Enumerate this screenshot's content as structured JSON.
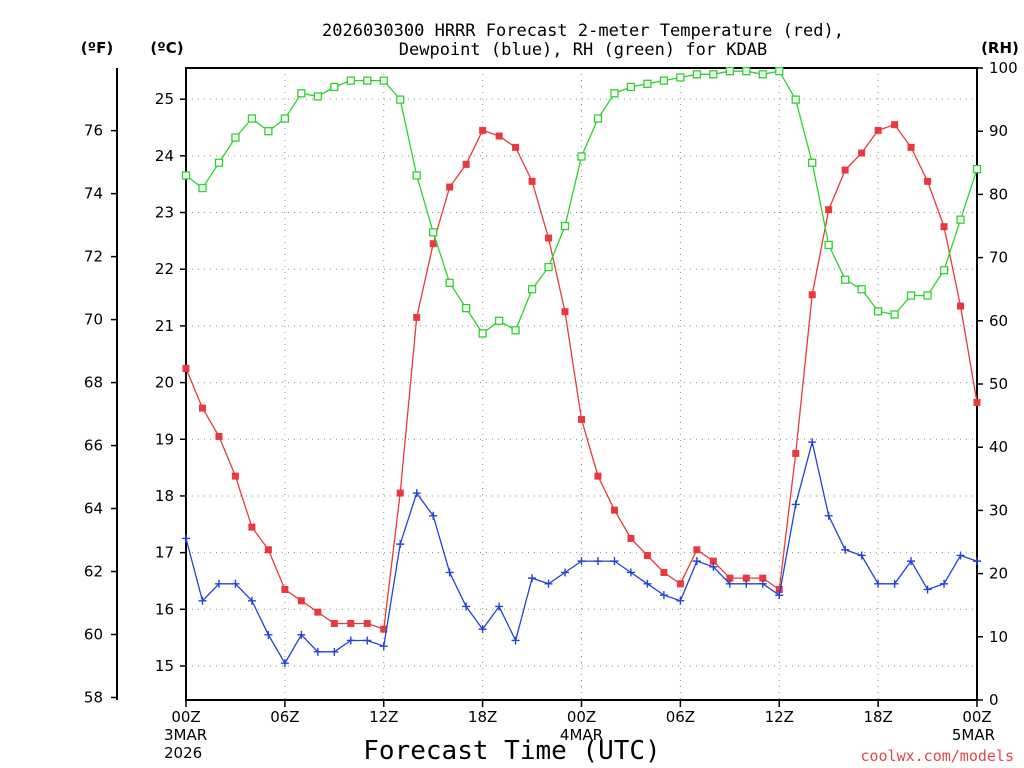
{
  "chart_data": {
    "type": "line",
    "title_lines": [
      "2026030300 HRRR Forecast 2-meter Temperature (red),",
      "Dewpoint (blue), RH (green) for KDAB"
    ],
    "xlabel": "Forecast Time (UTC)",
    "credit": "coolwx.com/models",
    "units": {
      "left_f": "(ºF)",
      "left_c": "(ºC)",
      "right": "(RH)"
    },
    "x_ticks": [
      {
        "hour": 0,
        "label": "00Z",
        "date": "3MAR",
        "year": "2026"
      },
      {
        "hour": 6,
        "label": "06Z"
      },
      {
        "hour": 12,
        "label": "12Z"
      },
      {
        "hour": 18,
        "label": "18Z"
      },
      {
        "hour": 24,
        "label": "00Z",
        "date": "4MAR"
      },
      {
        "hour": 30,
        "label": "06Z"
      },
      {
        "hour": 36,
        "label": "12Z"
      },
      {
        "hour": 42,
        "label": "18Z"
      },
      {
        "hour": 48,
        "label": "00Z",
        "date": "5MAR"
      }
    ],
    "xlim": [
      0,
      48
    ],
    "ylim_c": [
      14.4,
      25.55
    ],
    "ylim_f": [
      57.92,
      77.99
    ],
    "ylim_rh": [
      0,
      100
    ],
    "f_ticks": [
      "58",
      "60",
      "62",
      "64",
      "66",
      "68",
      "70",
      "72",
      "74",
      "76"
    ],
    "c_ticks": [
      "15",
      "16",
      "17",
      "18",
      "19",
      "20",
      "21",
      "22",
      "23",
      "24",
      "25"
    ],
    "rh_ticks": [
      "0",
      "10",
      "20",
      "30",
      "40",
      "50",
      "60",
      "70",
      "80",
      "90",
      "100"
    ],
    "grid": true,
    "series": [
      {
        "name": "Temperature (red)",
        "unit": "C",
        "color": "#e8393c",
        "marker": "filled-square",
        "values": [
          20.25,
          19.55,
          19.05,
          18.35,
          17.45,
          17.05,
          16.35,
          16.15,
          15.95,
          15.75,
          15.75,
          15.75,
          15.65,
          18.05,
          21.15,
          22.45,
          23.45,
          23.85,
          24.45,
          24.35,
          24.15,
          23.55,
          22.55,
          21.25,
          19.35,
          18.35,
          17.75,
          17.25,
          16.95,
          16.65,
          16.45,
          17.05,
          16.85,
          16.55,
          16.55,
          16.55,
          16.35,
          18.75,
          21.55,
          23.05,
          23.75,
          24.05,
          24.45,
          24.55,
          24.15,
          23.55,
          22.75,
          21.35,
          19.65
        ]
      },
      {
        "name": "Dewpoint (blue)",
        "unit": "C",
        "color": "#2343d9",
        "marker": "plus",
        "values": [
          17.25,
          16.15,
          16.45,
          16.45,
          16.15,
          15.55,
          15.05,
          15.55,
          15.25,
          15.25,
          15.45,
          15.45,
          15.35,
          17.15,
          18.05,
          17.65,
          16.65,
          16.05,
          15.65,
          16.05,
          15.45,
          16.55,
          16.45,
          16.65,
          16.85,
          16.85,
          16.85,
          16.65,
          16.45,
          16.25,
          16.15,
          16.85,
          16.75,
          16.45,
          16.45,
          16.45,
          16.25,
          17.85,
          18.95,
          17.65,
          17.05,
          16.95,
          16.45,
          16.45,
          16.85,
          16.35,
          16.45,
          16.95,
          16.85
        ]
      },
      {
        "name": "RH (green)",
        "unit": "%",
        "color": "#2bd42b",
        "marker": "open-square",
        "values": [
          83,
          81,
          85,
          89,
          92,
          90,
          92,
          96,
          95.5,
          97,
          98,
          98,
          98,
          95,
          83,
          74,
          66,
          62,
          58,
          60,
          58.5,
          65,
          68.5,
          75,
          86,
          92,
          96,
          97,
          97.5,
          98,
          98.5,
          99,
          99,
          99.5,
          99.5,
          99,
          99.5,
          95,
          85,
          72,
          66.5,
          65,
          61.5,
          61,
          64,
          64,
          68,
          76,
          84
        ]
      }
    ]
  }
}
